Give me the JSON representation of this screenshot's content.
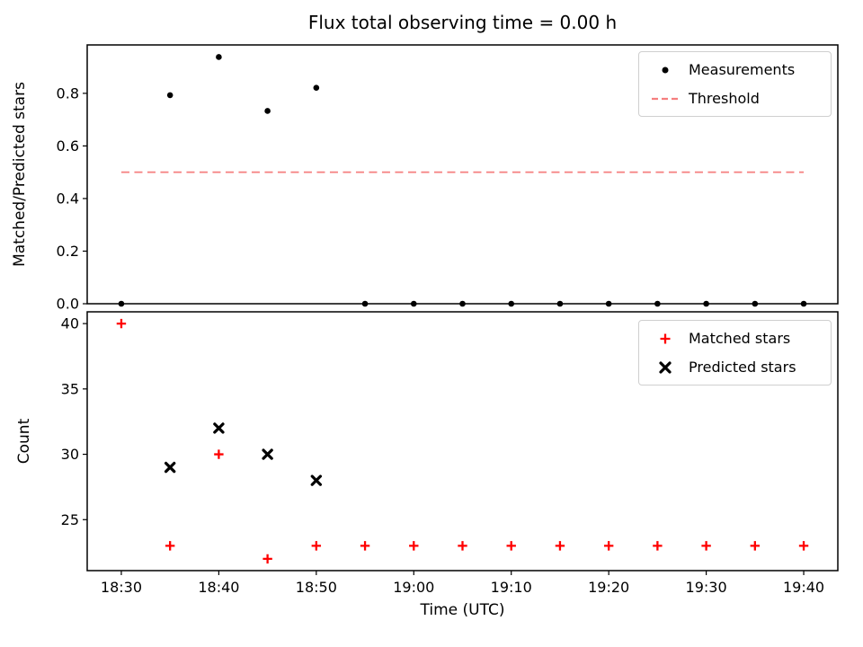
{
  "chart_data": [
    {
      "type": "scatter",
      "title": "Flux total observing time = 0.00 h",
      "ylabel": "Matched/Predicted stars",
      "xlabel": "",
      "grid": false,
      "legend_position": "upper right",
      "xlim_minutes": [
        -3.5,
        73.5
      ],
      "ylim": [
        0,
        0.984
      ],
      "yticks": [
        0.0,
        0.2,
        0.4,
        0.6,
        0.8
      ],
      "ytick_labels": [
        "0.0",
        "0.2",
        "0.4",
        "0.6",
        "0.8"
      ],
      "series": [
        {
          "name": "Measurements",
          "marker": "dot",
          "color": "#000000",
          "x_minutes": [
            0,
            5,
            10,
            15,
            20,
            25,
            30,
            35,
            40,
            45,
            50,
            55,
            60,
            65,
            70
          ],
          "x_times": [
            "18:30",
            "18:35",
            "18:40",
            "18:45",
            "18:50",
            "18:55",
            "19:00",
            "19:05",
            "19:10",
            "19:15",
            "19:20",
            "19:25",
            "19:30",
            "19:35",
            "19:40"
          ],
          "y": [
            0.0,
            0.793,
            0.938,
            0.733,
            0.821,
            0.0,
            0.0,
            0.0,
            0.0,
            0.0,
            0.0,
            0.0,
            0.0,
            0.0,
            0.0
          ]
        },
        {
          "name": "Threshold",
          "style": "dashed-hline",
          "color": "#f57f7f",
          "y": 0.5,
          "x_span_minutes": [
            0,
            70
          ]
        }
      ]
    },
    {
      "type": "scatter",
      "title": "",
      "ylabel": "Count",
      "xlabel": "Time (UTC)",
      "grid": false,
      "legend_position": "upper right",
      "xlim_minutes": [
        -3.5,
        73.5
      ],
      "ylim": [
        21.1,
        40.9
      ],
      "yticks": [
        25,
        30,
        35,
        40
      ],
      "ytick_labels": [
        "25",
        "30",
        "35",
        "40"
      ],
      "xticks_minutes": [
        0,
        10,
        20,
        30,
        40,
        50,
        60,
        70
      ],
      "xtick_labels": [
        "18:30",
        "18:40",
        "18:50",
        "19:00",
        "19:10",
        "19:20",
        "19:30",
        "19:40"
      ],
      "series": [
        {
          "name": "Matched stars",
          "marker": "plus",
          "color": "#ff0000",
          "x_minutes": [
            0,
            5,
            10,
            15,
            20,
            25,
            30,
            35,
            40,
            45,
            50,
            55,
            60,
            65,
            70
          ],
          "x_times": [
            "18:30",
            "18:35",
            "18:40",
            "18:45",
            "18:50",
            "18:55",
            "19:00",
            "19:05",
            "19:10",
            "19:15",
            "19:20",
            "19:25",
            "19:30",
            "19:35",
            "19:40"
          ],
          "y": [
            40,
            23,
            30,
            22,
            23,
            23,
            23,
            23,
            23,
            23,
            23,
            23,
            23,
            23,
            23
          ]
        },
        {
          "name": "Predicted stars",
          "marker": "x",
          "color": "#000000",
          "x_minutes": [
            5,
            10,
            15,
            20
          ],
          "x_times": [
            "18:35",
            "18:40",
            "18:45",
            "18:50"
          ],
          "y": [
            29,
            32,
            30,
            28
          ]
        }
      ]
    }
  ]
}
